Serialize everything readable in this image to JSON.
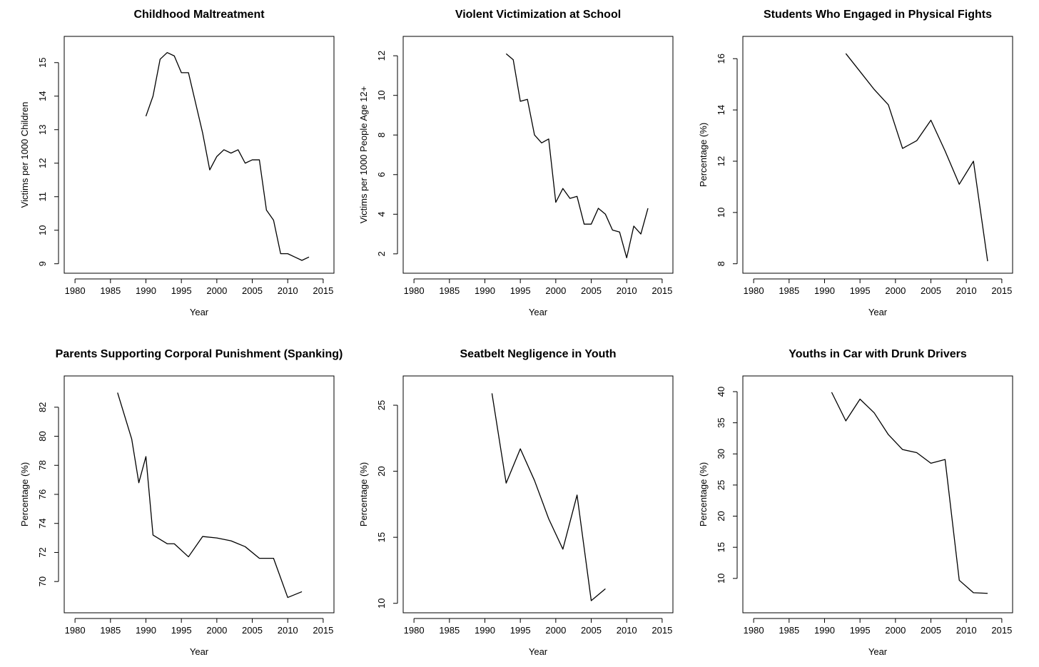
{
  "chart_data": [
    {
      "type": "line",
      "title": "Childhood Maltreatment",
      "xlabel": "Year",
      "ylabel": "Victims per 1000 Children",
      "xlim": [
        1980,
        2015
      ],
      "ylim": [
        9,
        15.5
      ],
      "xticks": [
        "1980",
        "1985",
        "1990",
        "1995",
        "2000",
        "2005",
        "2010",
        "2015"
      ],
      "yticks": [
        "9",
        "10",
        "11",
        "12",
        "13",
        "14",
        "15"
      ],
      "x": [
        1990,
        1991,
        1992,
        1993,
        1994,
        1995,
        1996,
        1997,
        1998,
        1999,
        2000,
        2001,
        2002,
        2003,
        2004,
        2005,
        2006,
        2007,
        2008,
        2009,
        2010,
        2011,
        2012,
        2013
      ],
      "y": [
        13.4,
        14.0,
        15.1,
        15.3,
        15.2,
        14.7,
        14.7,
        13.8,
        12.9,
        11.8,
        12.2,
        12.4,
        12.3,
        12.4,
        12.0,
        12.1,
        12.1,
        10.6,
        10.3,
        9.3,
        9.3,
        9.2,
        9.1,
        9.2
      ]
    },
    {
      "type": "line",
      "title": "Violent Victimization at School",
      "xlabel": "Year",
      "ylabel": "Victims per 1000 People Age 12+",
      "xlim": [
        1980,
        2015
      ],
      "ylim": [
        1.5,
        12.5
      ],
      "xticks": [
        "1980",
        "1985",
        "1990",
        "1995",
        "2000",
        "2005",
        "2010",
        "2015"
      ],
      "yticks": [
        "2",
        "4",
        "6",
        "8",
        "10",
        "12"
      ],
      "x": [
        1993,
        1994,
        1995,
        1996,
        1997,
        1998,
        1999,
        2000,
        2001,
        2002,
        2003,
        2004,
        2005,
        2006,
        2007,
        2008,
        2009,
        2010,
        2011,
        2012,
        2013
      ],
      "y": [
        12.1,
        11.8,
        9.7,
        9.8,
        8.0,
        7.6,
        7.8,
        4.6,
        5.3,
        4.8,
        4.9,
        3.5,
        3.5,
        4.3,
        4.0,
        3.2,
        3.1,
        1.8,
        3.4,
        3.0,
        4.3
      ]
    },
    {
      "type": "line",
      "title": "Students Who Engaged in Physical Fights",
      "xlabel": "Year",
      "ylabel": "Percentage (%)",
      "xlim": [
        1980,
        2015
      ],
      "ylim": [
        8,
        16.5
      ],
      "xticks": [
        "1980",
        "1985",
        "1990",
        "1995",
        "2000",
        "2005",
        "2010",
        "2015"
      ],
      "yticks": [
        "8",
        "10",
        "12",
        "14",
        "16"
      ],
      "x": [
        1993,
        1995,
        1997,
        1999,
        2001,
        2003,
        2005,
        2007,
        2009,
        2011,
        2013
      ],
      "y": [
        16.2,
        15.5,
        14.8,
        14.2,
        12.5,
        12.8,
        13.6,
        12.4,
        11.1,
        12.0,
        8.1
      ]
    },
    {
      "type": "line",
      "title": "Parents Supporting Corporal Punishment (Spanking)",
      "xlabel": "Year",
      "ylabel": "Percentage (%)",
      "xlim": [
        1980,
        2015
      ],
      "ylim": [
        68.5,
        83.5
      ],
      "xticks": [
        "1980",
        "1985",
        "1990",
        "1995",
        "2000",
        "2005",
        "2010",
        "2015"
      ],
      "yticks": [
        "70",
        "72",
        "74",
        "76",
        "78",
        "80",
        "82"
      ],
      "x": [
        1986,
        1988,
        1989,
        1990,
        1991,
        1993,
        1994,
        1996,
        1998,
        2000,
        2002,
        2004,
        2006,
        2008,
        2010,
        2012
      ],
      "y": [
        83.0,
        79.8,
        76.8,
        78.6,
        73.2,
        72.6,
        72.6,
        71.7,
        73.1,
        73.0,
        72.8,
        72.4,
        71.6,
        71.6,
        68.9,
        69.3
      ]
    },
    {
      "type": "line",
      "title": "Seatbelt Negligence in Youth",
      "xlabel": "Year",
      "ylabel": "Percentage (%)",
      "xlim": [
        1980,
        2015
      ],
      "ylim": [
        10,
        26.5
      ],
      "xticks": [
        "1980",
        "1985",
        "1990",
        "1995",
        "2000",
        "2005",
        "2010",
        "2015"
      ],
      "yticks": [
        "10",
        "15",
        "20",
        "25"
      ],
      "x": [
        1991,
        1993,
        1995,
        1997,
        1999,
        2001,
        2003,
        2005,
        2007
      ],
      "y": [
        25.9,
        19.1,
        21.7,
        19.3,
        16.4,
        14.1,
        18.2,
        10.2,
        11.1
      ]
    },
    {
      "type": "line",
      "title": "Youths in Car with Drunk Drivers",
      "xlabel": "Year",
      "ylabel": "Percentage (%)",
      "xlim": [
        1980,
        2015
      ],
      "ylim": [
        6,
        41
      ],
      "xticks": [
        "1980",
        "1985",
        "1990",
        "1995",
        "2000",
        "2005",
        "2010",
        "2015"
      ],
      "yticks": [
        "10",
        "15",
        "20",
        "25",
        "30",
        "35",
        "40"
      ],
      "x": [
        1991,
        1993,
        1995,
        1997,
        1999,
        2001,
        2003,
        2005,
        2007,
        2009,
        2011,
        2013
      ],
      "y": [
        39.9,
        35.3,
        38.8,
        36.6,
        33.1,
        30.7,
        30.2,
        28.5,
        29.1,
        9.7,
        7.7,
        7.6
      ]
    }
  ]
}
